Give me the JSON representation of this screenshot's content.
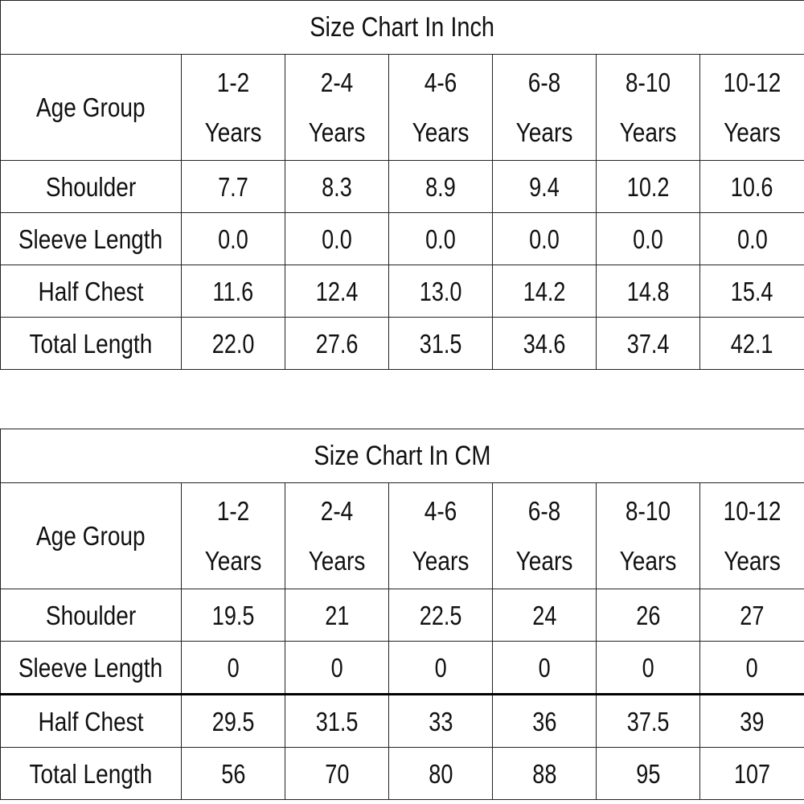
{
  "charts": [
    {
      "title": "Size Chart In Inch",
      "age_label": "Age Group",
      "age_groups": [
        [
          "1-2",
          "Years"
        ],
        [
          "2-4",
          "Years"
        ],
        [
          "4-6",
          "Years"
        ],
        [
          "6-8",
          "Years"
        ],
        [
          "8-10",
          "Years"
        ],
        [
          "10-12",
          "Years"
        ]
      ],
      "rows": [
        {
          "label": "Shoulder",
          "values": [
            "7.7",
            "8.3",
            "8.9",
            "9.4",
            "10.2",
            "10.6"
          ]
        },
        {
          "label": "Sleeve Length",
          "values": [
            "0.0",
            "0.0",
            "0.0",
            "0.0",
            "0.0",
            "0.0"
          ]
        },
        {
          "label": "Half Chest",
          "values": [
            "11.6",
            "12.4",
            "13.0",
            "14.2",
            "14.8",
            "15.4"
          ]
        },
        {
          "label": "Total Length",
          "values": [
            "22.0",
            "27.6",
            "31.5",
            "34.6",
            "37.4",
            "42.1"
          ]
        }
      ]
    },
    {
      "title": "Size Chart In CM",
      "age_label": "Age Group",
      "age_groups": [
        [
          "1-2",
          "Years"
        ],
        [
          "2-4",
          "Years"
        ],
        [
          "4-6",
          "Years"
        ],
        [
          "6-8",
          "Years"
        ],
        [
          "8-10",
          "Years"
        ],
        [
          "10-12",
          "Years"
        ]
      ],
      "rows": [
        {
          "label": "Shoulder",
          "values": [
            "19.5",
            "21",
            "22.5",
            "24",
            "26",
            "27"
          ]
        },
        {
          "label": "Sleeve Length",
          "values": [
            "0",
            "0",
            "0",
            "0",
            "0",
            "0"
          ]
        },
        {
          "label": "Half Chest",
          "values": [
            "29.5",
            "31.5",
            "33",
            "36",
            "37.5",
            "39"
          ]
        },
        {
          "label": "Total Length",
          "values": [
            "56",
            "70",
            "80",
            "88",
            "95",
            "107"
          ]
        }
      ]
    }
  ]
}
